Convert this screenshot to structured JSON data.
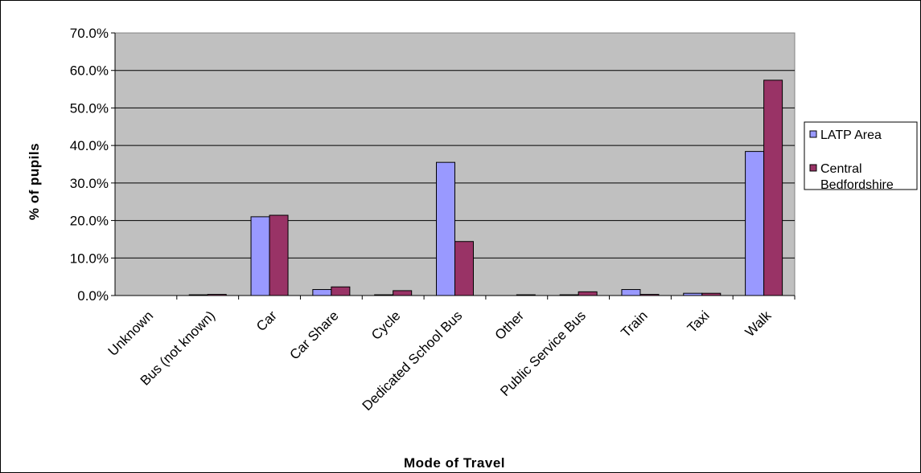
{
  "chart_data": {
    "type": "bar",
    "xlabel": "Mode of Travel",
    "ylabel": "% of pupils",
    "ylim": [
      0,
      70
    ],
    "ytick_step": 10,
    "ytick_labels": [
      "0.0%",
      "10.0%",
      "20.0%",
      "30.0%",
      "40.0%",
      "50.0%",
      "60.0%",
      "70.0%"
    ],
    "grid": true,
    "legend_position": "right",
    "categories": [
      "Unknown",
      "Bus (not known)",
      "Car",
      "Car Share",
      "Cycle",
      "Dedicated School Bus",
      "Other",
      "Public Service Bus",
      "Train",
      "Taxi",
      "Walk"
    ],
    "series": [
      {
        "name": "LATP Area",
        "legend_lines": [
          "LATP Area"
        ],
        "color": "#9999ff",
        "values": [
          0.0,
          0.2,
          21.0,
          1.6,
          0.2,
          35.5,
          0.0,
          0.2,
          1.6,
          0.6,
          38.4
        ]
      },
      {
        "name": "Central Bedfordshire",
        "legend_lines": [
          "Central",
          "Bedfordshire"
        ],
        "color": "#993366",
        "values": [
          0.0,
          0.3,
          21.4,
          2.3,
          1.3,
          14.4,
          0.2,
          1.0,
          0.3,
          0.6,
          57.4
        ]
      }
    ],
    "plot_background": "#c0c0c0",
    "gridline_color": "#000000"
  }
}
